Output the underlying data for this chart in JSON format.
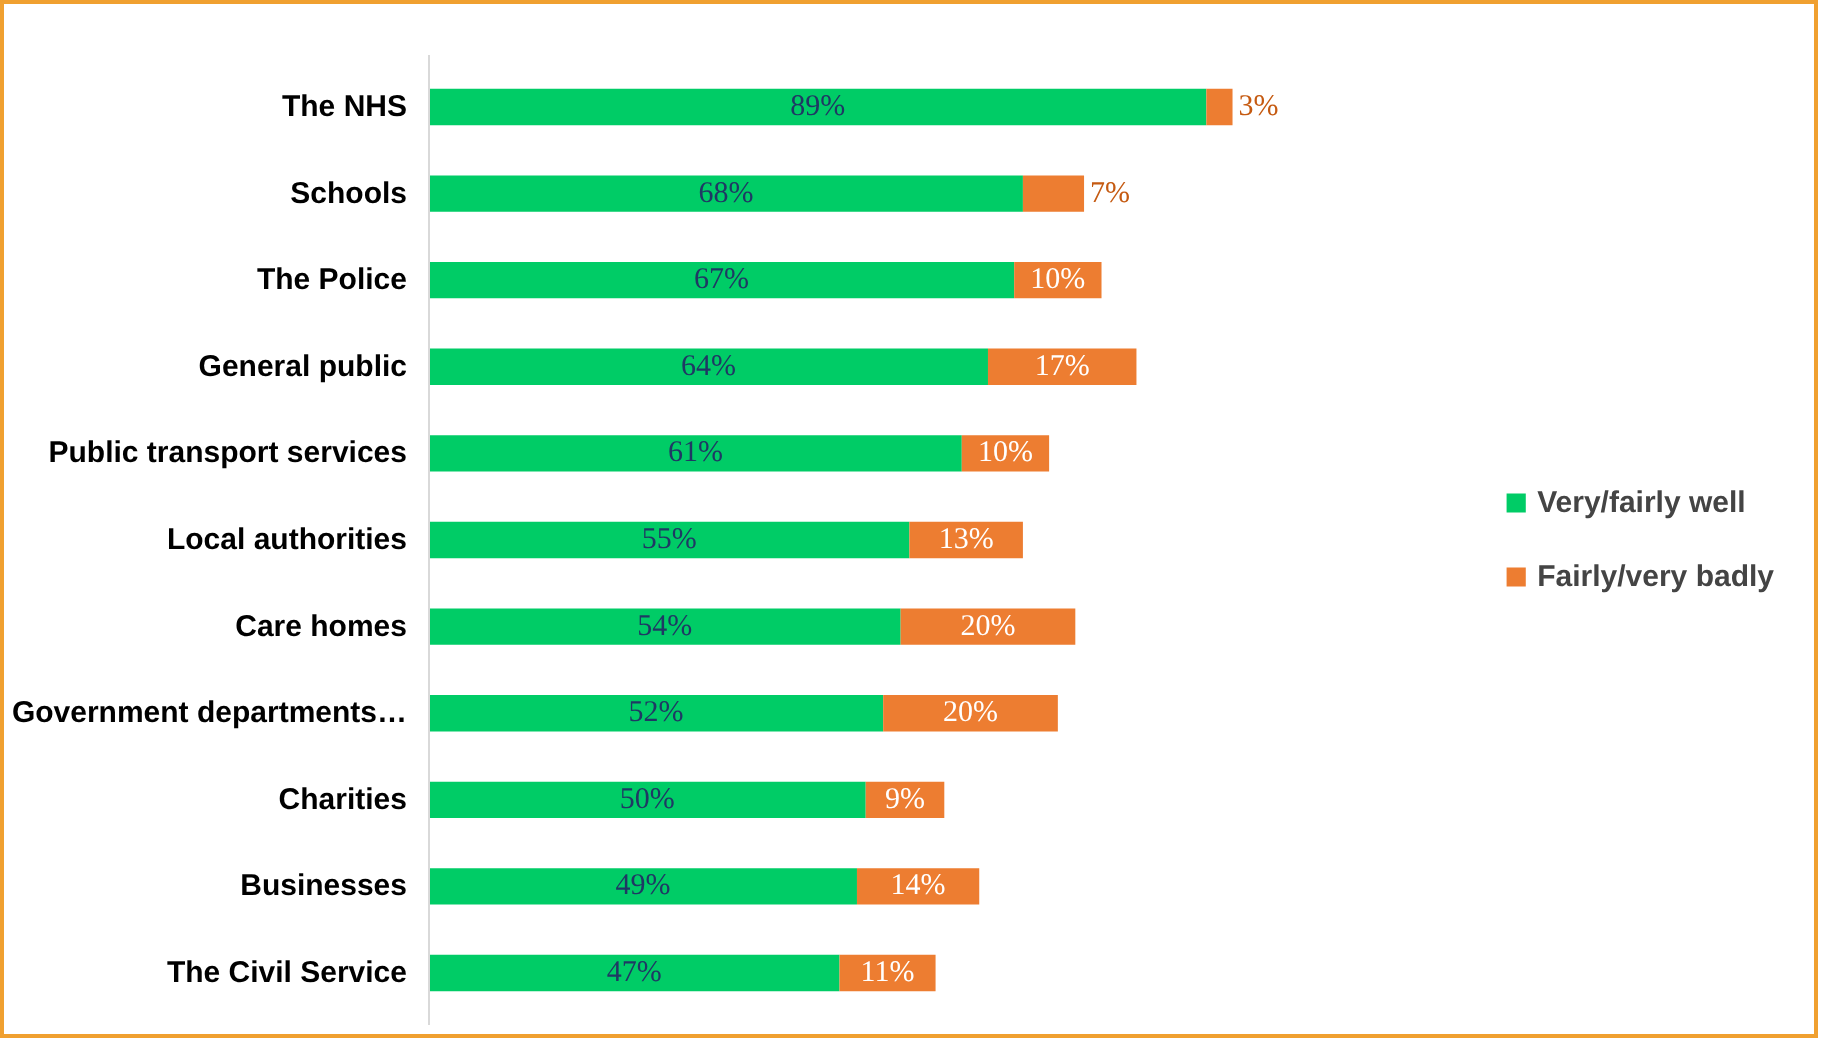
{
  "chart_data": {
    "type": "bar",
    "orientation": "horizontal",
    "stacked": true,
    "tick_labels": "y",
    "legend": "right",
    "grid": false,
    "categories": [
      "The NHS",
      "Schools",
      "The Police",
      "General public",
      "Public transport services",
      "Local authorities",
      "Care homes",
      "Government departments…",
      "Charities",
      "Businesses",
      "The Civil Service"
    ],
    "series": [
      {
        "name": "Very/fairly well",
        "color": "#00cc66",
        "values": [
          89,
          68,
          67,
          64,
          61,
          55,
          54,
          52,
          50,
          49,
          47
        ],
        "value_labels": [
          "89%",
          "68%",
          "67%",
          "64%",
          "61%",
          "55%",
          "54%",
          "52%",
          "50%",
          "49%",
          "47%"
        ]
      },
      {
        "name": "Fairly/very badly",
        "color": "#ed7d31",
        "values": [
          3,
          7,
          10,
          17,
          10,
          13,
          20,
          20,
          9,
          14,
          11
        ],
        "value_labels": [
          "3%",
          "7%",
          "10%",
          "17%",
          "10%",
          "13%",
          "20%",
          "20%",
          "9%",
          "14%",
          "11%"
        ]
      }
    ]
  }
}
